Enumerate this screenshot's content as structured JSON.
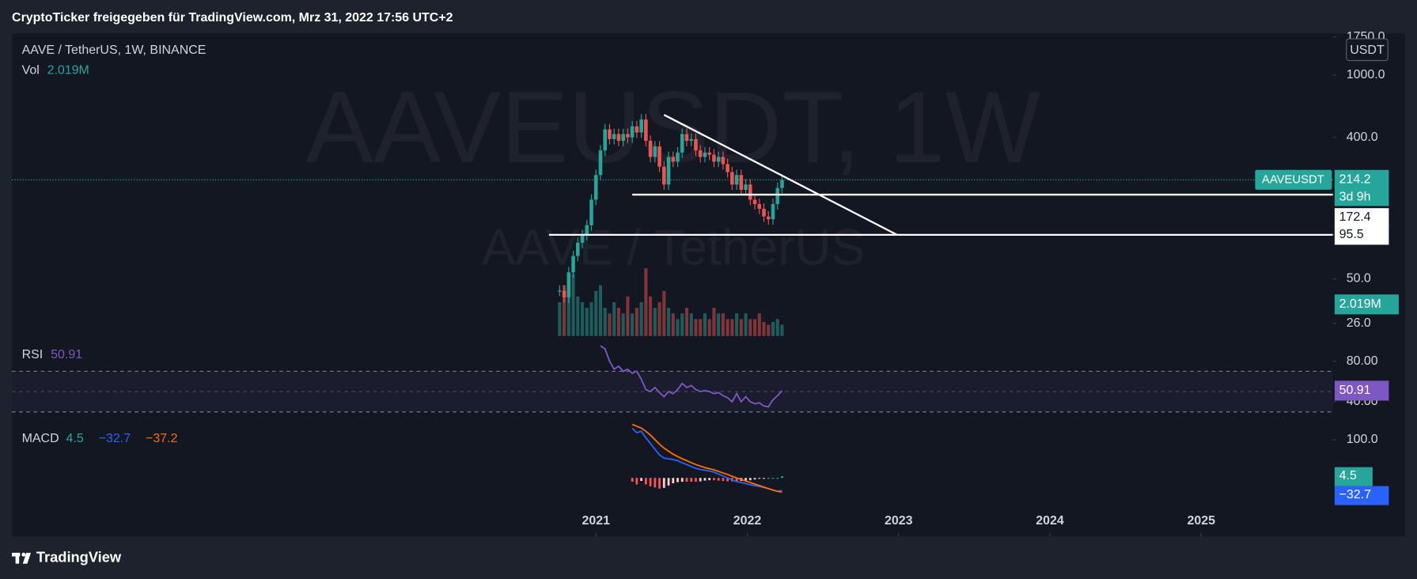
{
  "header": {
    "title": "CryptoTicker freigegeben für TradingView.com, Mrz 31, 2022 17:56 UTC+2"
  },
  "footer": {
    "brand": "TradingView"
  },
  "chart_data": [
    {
      "type": "candlestick",
      "title": "AAVE / TetherUS, 1W, BINANCE",
      "watermark": "AAVEUSDT, 1W",
      "watermark_sub": "AAVE / TetherUS",
      "currency": "USDT",
      "log_scale": true,
      "xlim": [
        2017.14,
        2025.87
      ],
      "xticks": [
        2021,
        2022,
        2023,
        2024,
        2025
      ],
      "ylim": [
        19.4,
        1843
      ],
      "yticks": [
        {
          "value": 1750,
          "label": "1750.0"
        },
        {
          "value": 1000,
          "label": "1000.0"
        },
        {
          "value": 400,
          "label": "400.0"
        },
        {
          "value": 50,
          "label": "50.0"
        },
        {
          "value": 26,
          "label": "26.0"
        }
      ],
      "x": [
        2020.76,
        2020.79,
        2020.82,
        2020.85,
        2020.88,
        2020.91,
        2020.94,
        2020.97,
        2021.0,
        2021.03,
        2021.06,
        2021.09,
        2021.12,
        2021.15,
        2021.18,
        2021.21,
        2021.24,
        2021.27,
        2021.3,
        2021.33,
        2021.36,
        2021.39,
        2021.42,
        2021.45,
        2021.48,
        2021.51,
        2021.54,
        2021.57,
        2021.6,
        2021.63,
        2021.66,
        2021.69,
        2021.72,
        2021.75,
        2021.78,
        2021.81,
        2021.84,
        2021.87,
        2021.9,
        2021.93,
        2021.96,
        2021.99,
        2022.02,
        2022.05,
        2022.08,
        2022.11,
        2022.14,
        2022.17,
        2022.2,
        2022.23
      ],
      "series": [
        {
          "name": "AAVEUSDT",
          "color_up": "#26a69a",
          "color_down": "#ef5350",
          "values": [
            42,
            38,
            55,
            70,
            85,
            95,
            110,
            160,
            230,
            330,
            450,
            390,
            420,
            380,
            420,
            400,
            470,
            430,
            520,
            380,
            300,
            350,
            260,
            200,
            300,
            280,
            320,
            420,
            380,
            390,
            330,
            300,
            320,
            310,
            280,
            300,
            270,
            240,
            200,
            230,
            185,
            200,
            160,
            150,
            140,
            125,
            120,
            150,
            190,
            214.2
          ]
        }
      ],
      "countdown": "3d 9h",
      "levels": [
        {
          "value": 172.4,
          "x_start": 2021.24,
          "color": "#ffffff"
        },
        {
          "value": 95.5,
          "x_start": 2020.69,
          "color": "#ffffff"
        }
      ],
      "trendline": {
        "x": [
          2021.45,
          2022.99
        ],
        "values": [
          557,
          95.5
        ],
        "color": "#ffffff"
      },
      "volume": {
        "name": "Vol",
        "label": "2.019M",
        "values": [
          6,
          9,
          8,
          11,
          7,
          6,
          5,
          6,
          8,
          9,
          5,
          4,
          6,
          5,
          4,
          7,
          4,
          5,
          6,
          12,
          7,
          5,
          6,
          8,
          5,
          4,
          3,
          4,
          5,
          4,
          3,
          3,
          4,
          3,
          5,
          4,
          4,
          3,
          3,
          4,
          3,
          4,
          3,
          3,
          4,
          2.5,
          2,
          2.5,
          3,
          2.019
        ]
      }
    },
    {
      "type": "line",
      "title": "RSI",
      "ylim": [
        22,
        97.6
      ],
      "yticks": [
        {
          "value": 80,
          "label": "80.00"
        },
        {
          "value": 40,
          "label": "40.00"
        }
      ],
      "bands": [
        70,
        50,
        30
      ],
      "series": [
        {
          "name": "RSI",
          "color": "#7e57c2",
          "values": [
            null,
            null,
            null,
            null,
            null,
            null,
            null,
            null,
            null,
            95,
            92,
            80,
            72,
            75,
            70,
            72,
            68,
            70,
            62,
            52,
            50,
            54,
            49,
            45,
            50,
            48,
            52,
            58,
            54,
            56,
            52,
            50,
            51,
            50,
            48,
            49,
            46,
            44,
            40,
            48,
            40,
            45,
            40,
            38,
            39,
            36,
            35,
            42,
            46,
            50.91
          ]
        }
      ]
    },
    {
      "type": "macd",
      "title": "MACD",
      "ylim": [
        -73,
        149
      ],
      "yticks": [
        {
          "value": 100,
          "label": "100.0"
        }
      ],
      "series": [
        {
          "name": "Histogram",
          "kind": "bar",
          "color_up": "#26a69a",
          "color_down": "#ff5252",
          "legend_label": "4.5",
          "values": [
            null,
            null,
            null,
            null,
            null,
            null,
            null,
            null,
            null,
            null,
            null,
            null,
            null,
            null,
            null,
            null,
            -10,
            -17,
            -8,
            -17,
            -22,
            -25,
            -28,
            -26,
            -20,
            -14,
            -11,
            -10,
            -10,
            -10,
            -10,
            -9,
            -7,
            -6,
            -6,
            -7,
            -8,
            -9,
            -9,
            -10,
            -8,
            -7,
            -6,
            -4,
            -2,
            -1,
            0,
            0,
            0,
            4.5
          ]
        },
        {
          "name": "MACD",
          "kind": "line",
          "color": "#2962ff",
          "legend_label": "−32.7",
          "values": [
            null,
            null,
            null,
            null,
            null,
            null,
            null,
            null,
            null,
            null,
            null,
            null,
            null,
            null,
            null,
            null,
            130,
            118,
            122,
            105,
            90,
            75,
            60,
            52,
            50,
            48,
            45,
            40,
            35,
            30,
            25,
            22,
            20,
            18,
            15,
            10,
            5,
            0,
            -5,
            -10,
            -12,
            -15,
            -18,
            -20,
            -22,
            -25,
            -28,
            -32,
            -35,
            -32.7
          ]
        },
        {
          "name": "Signal",
          "kind": "line",
          "color": "#ff6d00",
          "legend_label": "−37.2",
          "values": [
            null,
            null,
            null,
            null,
            null,
            null,
            null,
            null,
            null,
            null,
            null,
            null,
            null,
            null,
            null,
            null,
            140,
            135,
            130,
            122,
            112,
            100,
            88,
            78,
            70,
            62,
            56,
            50,
            45,
            40,
            35,
            31,
            27,
            24,
            21,
            17,
            13,
            9,
            4,
            0,
            -4,
            -8,
            -12,
            -16,
            -20,
            -24,
            -28,
            -32,
            -35,
            -37.2
          ]
        }
      ]
    }
  ]
}
